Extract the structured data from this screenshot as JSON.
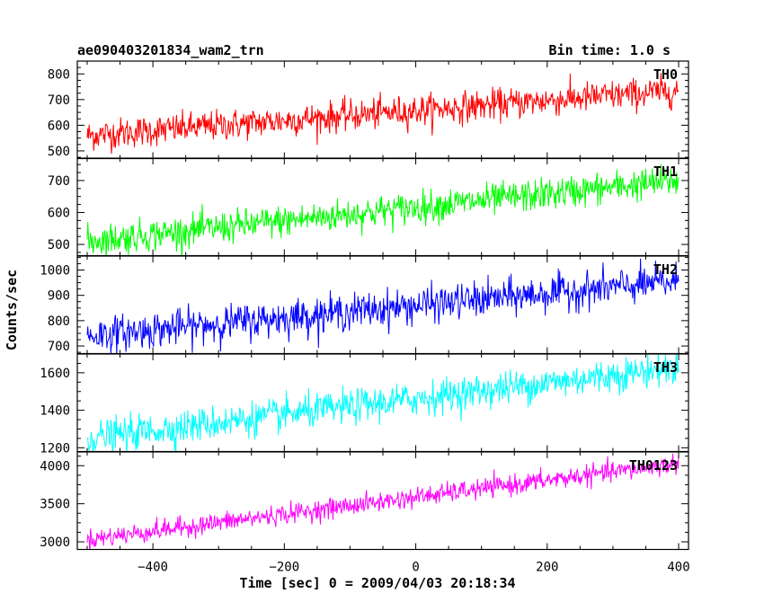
{
  "header": {
    "title": "ae090403201834_wam2_trn",
    "bin_time": "Bin time: 1.0 s"
  },
  "axes": {
    "xlabel": "Time [sec] 0 = 2009/04/03 20:18:34",
    "ylabel": "Counts/sec"
  },
  "chart_data": {
    "type": "line",
    "xlim": [
      -515,
      415
    ],
    "xticks": [
      -400,
      -200,
      0,
      200,
      400
    ],
    "xtick_labels": [
      "−400",
      "−200",
      "0",
      "200",
      "400"
    ],
    "x_range": [
      -500,
      400
    ],
    "panels": [
      {
        "name": "TH0",
        "color": "#ff0000",
        "ylim": [
          470,
          850
        ],
        "yticks": [
          500,
          600,
          700,
          800
        ],
        "y_start": 560,
        "y_end": 735,
        "noise": 30
      },
      {
        "name": "TH1",
        "color": "#00ff00",
        "ylim": [
          465,
          770
        ],
        "yticks": [
          500,
          600,
          700
        ],
        "y_start": 510,
        "y_end": 700,
        "noise": 25
      },
      {
        "name": "TH2",
        "color": "#0000ff",
        "ylim": [
          670,
          1055
        ],
        "yticks": [
          700,
          800,
          900,
          1000
        ],
        "y_start": 740,
        "y_end": 955,
        "noise": 35
      },
      {
        "name": "TH3",
        "color": "#00ffff",
        "ylim": [
          1180,
          1700
        ],
        "yticks": [
          1200,
          1400,
          1600
        ],
        "y_start": 1250,
        "y_end": 1630,
        "noise": 45
      },
      {
        "name": "TH0123",
        "color": "#ff00ff",
        "ylim": [
          2900,
          4180
        ],
        "yticks": [
          3000,
          3500,
          4000
        ],
        "y_start": 3030,
        "y_end": 4030,
        "noise": 65
      }
    ]
  }
}
